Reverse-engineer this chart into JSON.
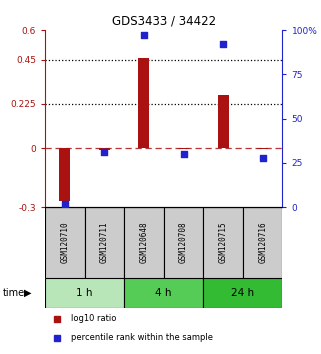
{
  "title": "GDS3433 / 34422",
  "samples": [
    "GSM120710",
    "GSM120711",
    "GSM120648",
    "GSM120708",
    "GSM120715",
    "GSM120716"
  ],
  "log10_ratio": [
    -0.27,
    -0.01,
    0.46,
    -0.005,
    0.27,
    -0.005
  ],
  "percentile_rank": [
    1.5,
    31,
    97,
    30,
    92,
    28
  ],
  "ylim_left": [
    -0.3,
    0.6
  ],
  "ylim_right": [
    0,
    100
  ],
  "yticks_left": [
    -0.3,
    0,
    0.225,
    0.45,
    0.6
  ],
  "ytick_labels_left": [
    "-0.3",
    "0",
    "0.225",
    "0.45",
    "0.6"
  ],
  "yticks_right": [
    0,
    25,
    50,
    75,
    100
  ],
  "ytick_labels_right": [
    "0",
    "25",
    "50",
    "75",
    "100%"
  ],
  "hlines_dotted": [
    0.225,
    0.45
  ],
  "hline_dashed": 0,
  "bar_color": "#aa1111",
  "square_color": "#2222cc",
  "time_groups": [
    {
      "label": "1 h",
      "start": 0,
      "end": 1,
      "color": "#b8e6b8"
    },
    {
      "label": "4 h",
      "start": 2,
      "end": 3,
      "color": "#55cc55"
    },
    {
      "label": "24 h",
      "start": 4,
      "end": 5,
      "color": "#33bb33"
    }
  ],
  "legend_items": [
    {
      "label": "log10 ratio",
      "color": "#aa1111",
      "marker": "s"
    },
    {
      "label": "percentile rank within the sample",
      "color": "#2222cc",
      "marker": "s"
    }
  ],
  "background_color": "#ffffff",
  "sample_box_color": "#cccccc",
  "time_label": "time"
}
